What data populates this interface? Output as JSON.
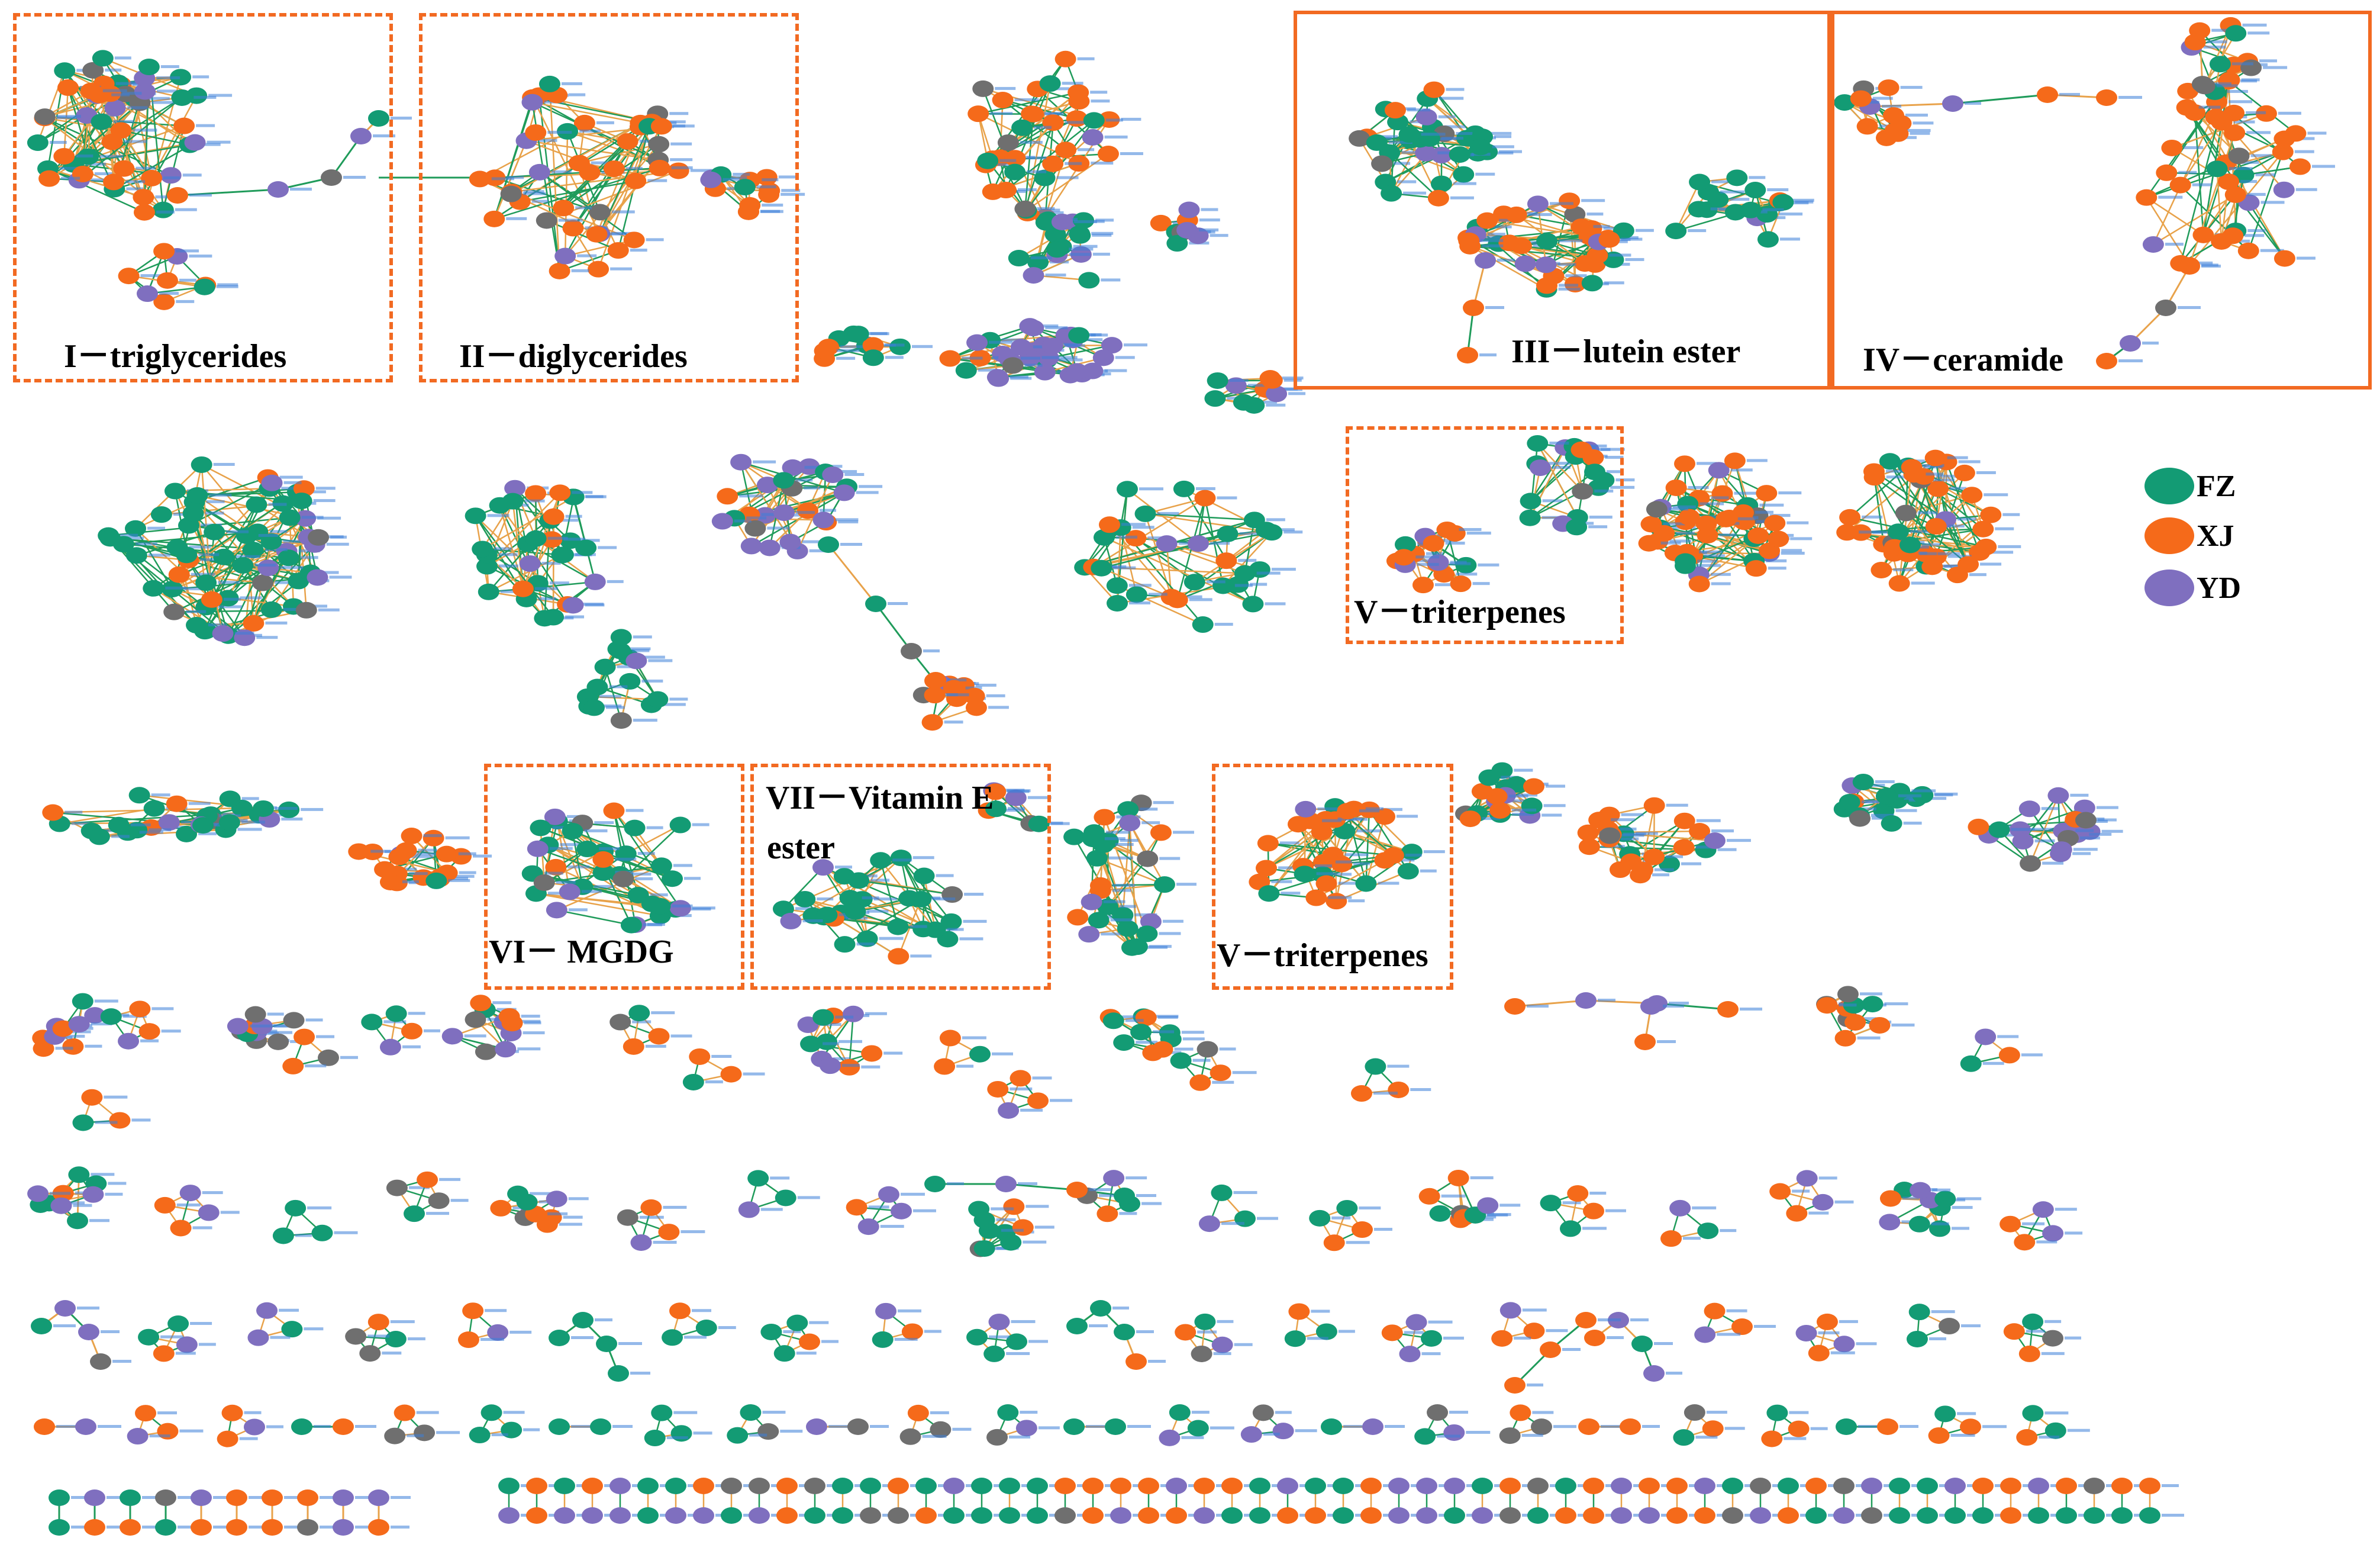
{
  "colors": {
    "FZ": "#139b74",
    "XJ": "#f56a1a",
    "YD": "#7f6fbf",
    "unknown": "#6f6f6f",
    "edge_green": "#1f9b5a",
    "edge_orange": "#e8a24a",
    "box": "#f26a22",
    "node_label": "#3d7fd8"
  },
  "legend": [
    {
      "key": "FZ",
      "label": "FZ"
    },
    {
      "key": "XJ",
      "label": "XJ"
    },
    {
      "key": "YD",
      "label": "YD"
    }
  ],
  "clusters": [
    {
      "id": "c1",
      "label": "I－triglycerides"
    },
    {
      "id": "c2",
      "label": "II－diglycerides"
    },
    {
      "id": "c3",
      "label": "III－lutein  ester"
    },
    {
      "id": "c4",
      "label": "IV－ceramide"
    },
    {
      "id": "c5",
      "label": "V－triterpenes"
    },
    {
      "id": "c6",
      "label": "VI－  MGDG"
    },
    {
      "id": "c7a",
      "label": "VII－Vitamin  E"
    },
    {
      "id": "c7b",
      "label": "ester"
    },
    {
      "id": "c8",
      "label": "V－triterpenes"
    }
  ]
}
